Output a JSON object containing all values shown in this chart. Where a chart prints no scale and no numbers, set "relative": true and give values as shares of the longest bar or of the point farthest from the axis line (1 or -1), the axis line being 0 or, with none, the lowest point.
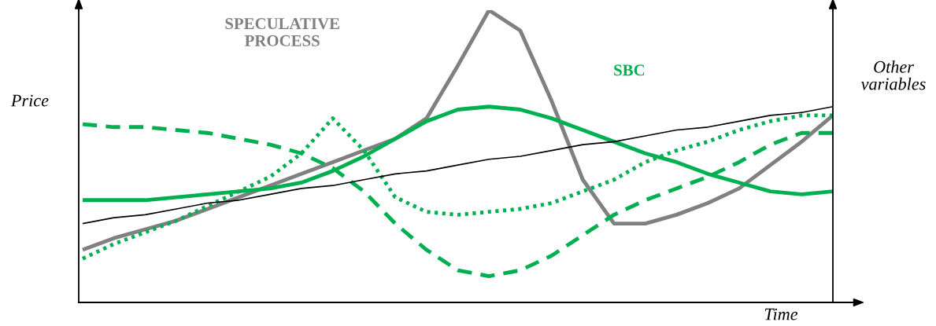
{
  "chart_data": {
    "type": "line",
    "relative": true,
    "xlabel": "Time",
    "ylabel": "Price",
    "y2label": "Other variables",
    "legend": false,
    "marker": "none",
    "categories": [
      null,
      null,
      null,
      null,
      null,
      null,
      null,
      null,
      null,
      null,
      null,
      null,
      null,
      null,
      null,
      null,
      null,
      null,
      null,
      null,
      null,
      null,
      null,
      null,
      null
    ],
    "series": [
      {
        "name": "SPECULATIVE PROCESS",
        "color": "#808080",
        "line_style": "solid",
        "values": [
          0.18,
          0.22,
          0.25,
          0.28,
          0.32,
          0.36,
          0.4,
          0.44,
          0.48,
          0.52,
          0.56,
          0.63,
          0.81,
          1.0,
          0.93,
          0.69,
          0.42,
          0.27,
          0.27,
          0.3,
          0.34,
          0.39,
          0.47,
          0.55,
          0.64
        ]
      },
      {
        "name": "SBC",
        "color": "#00b050",
        "line_style": "solid",
        "values": [
          0.35,
          0.35,
          0.35,
          0.36,
          0.37,
          0.38,
          0.39,
          0.41,
          0.45,
          0.5,
          0.56,
          0.62,
          0.66,
          0.67,
          0.66,
          0.63,
          0.59,
          0.55,
          0.51,
          0.48,
          0.44,
          0.41,
          0.38,
          0.37,
          0.38
        ]
      },
      {
        "color": "#00b050",
        "line_style": "dashed",
        "values": [
          0.61,
          0.6,
          0.6,
          0.59,
          0.58,
          0.56,
          0.54,
          0.51,
          0.46,
          0.38,
          0.27,
          0.18,
          0.11,
          0.09,
          0.11,
          0.16,
          0.23,
          0.3,
          0.35,
          0.39,
          0.43,
          0.48,
          0.54,
          0.58,
          0.58
        ]
      },
      {
        "color": "#00b050",
        "line_style": "dotted",
        "values": [
          0.15,
          0.2,
          0.24,
          0.28,
          0.33,
          0.38,
          0.43,
          0.51,
          0.63,
          0.52,
          0.36,
          0.31,
          0.3,
          0.31,
          0.32,
          0.34,
          0.38,
          0.42,
          0.48,
          0.52,
          0.55,
          0.59,
          0.62,
          0.64,
          0.64
        ]
      },
      {
        "color": "#000000",
        "line_style": "solid",
        "values": [
          0.27,
          0.29,
          0.3,
          0.32,
          0.34,
          0.35,
          0.37,
          0.39,
          0.4,
          0.42,
          0.44,
          0.45,
          0.47,
          0.49,
          0.5,
          0.52,
          0.54,
          0.55,
          0.57,
          0.59,
          0.6,
          0.62,
          0.64,
          0.65,
          0.67
        ]
      }
    ]
  }
}
